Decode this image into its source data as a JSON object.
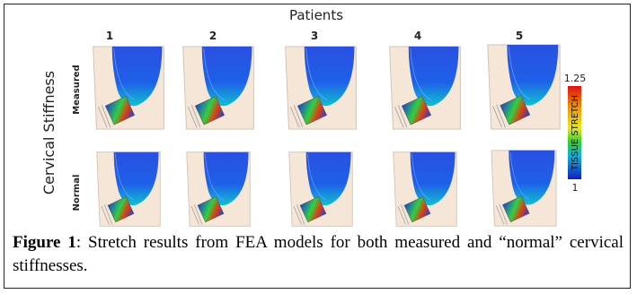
{
  "figure": {
    "column_title": "Patients",
    "columns": [
      "1",
      "2",
      "3",
      "4",
      "5"
    ],
    "row_title": "Cervical Stiffness",
    "rows": [
      "Measured",
      "Normal"
    ],
    "colorbar": {
      "max_label": "1.25",
      "title": "TISSUE STRETCH",
      "min_label": "1"
    }
  },
  "caption": {
    "label": "Figure 1",
    "text": ":  Stretch results from FEA models for both measured and “normal” cervical stiffnesses."
  }
}
